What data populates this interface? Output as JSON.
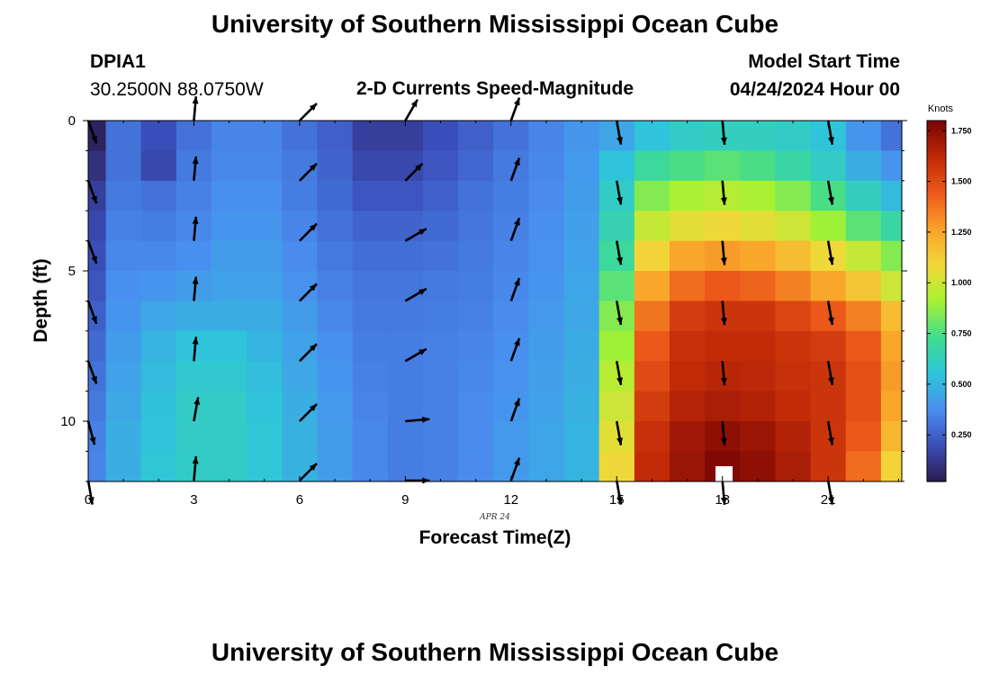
{
  "title": "University of Southern Mississippi Ocean Cube",
  "footer_title": "University of Southern Mississippi Ocean Cube",
  "station": {
    "id": "DPIA1",
    "coords": "30.2500N  88.0750W"
  },
  "subtitle": "2-D Currents Speed-Magnitude",
  "model_start": {
    "label": "Model Start Time",
    "value": "04/24/2024 Hour 00"
  },
  "date_label": "APR 24",
  "colorbar": {
    "unit": "Knots",
    "ticks": [
      "0.250",
      "0.500",
      "0.750",
      "1.000",
      "1.250",
      "1.500",
      "1.750"
    ],
    "range": [
      0.02,
      1.8
    ]
  },
  "chart_data": {
    "type": "heatmap",
    "xlabel": "Forecast Time(Z)",
    "ylabel": "Depth (ft)",
    "xlim": [
      0,
      23
    ],
    "ylim": [
      0,
      12
    ],
    "y_inverted": true,
    "xticks": [
      "0",
      "3",
      "6",
      "9",
      "12",
      "15",
      "18",
      "21"
    ],
    "yticks": [
      "0",
      "5",
      "10"
    ],
    "hours": [
      0,
      1,
      2,
      3,
      4,
      5,
      6,
      7,
      8,
      9,
      10,
      11,
      12,
      13,
      14,
      15,
      16,
      17,
      18,
      19,
      20,
      21,
      22,
      23
    ],
    "depths_ft": [
      0,
      1,
      2,
      3,
      4,
      5,
      6,
      7,
      8,
      9,
      10,
      11
    ],
    "speed_knots": [
      [
        0.05,
        0.3,
        0.2,
        0.3,
        0.35,
        0.35,
        0.3,
        0.25,
        0.15,
        0.15,
        0.2,
        0.25,
        0.3,
        0.35,
        0.4,
        0.45,
        0.55,
        0.6,
        0.62,
        0.62,
        0.6,
        0.55,
        0.4,
        0.3
      ],
      [
        0.1,
        0.3,
        0.18,
        0.32,
        0.36,
        0.36,
        0.32,
        0.26,
        0.18,
        0.18,
        0.22,
        0.27,
        0.32,
        0.36,
        0.41,
        0.55,
        0.7,
        0.75,
        0.78,
        0.75,
        0.68,
        0.6,
        0.48,
        0.4
      ],
      [
        0.15,
        0.32,
        0.3,
        0.34,
        0.38,
        0.38,
        0.33,
        0.28,
        0.22,
        0.22,
        0.25,
        0.3,
        0.33,
        0.37,
        0.42,
        0.6,
        0.85,
        0.92,
        0.95,
        0.92,
        0.85,
        0.75,
        0.62,
        0.52
      ],
      [
        0.18,
        0.34,
        0.33,
        0.36,
        0.4,
        0.4,
        0.35,
        0.3,
        0.26,
        0.26,
        0.28,
        0.31,
        0.34,
        0.38,
        0.43,
        0.65,
        0.98,
        1.05,
        1.08,
        1.05,
        1.0,
        0.9,
        0.78,
        0.68
      ],
      [
        0.2,
        0.36,
        0.36,
        0.38,
        0.42,
        0.42,
        0.37,
        0.32,
        0.29,
        0.29,
        0.3,
        0.32,
        0.35,
        0.39,
        0.44,
        0.7,
        1.1,
        1.25,
        1.28,
        1.25,
        1.18,
        1.08,
        0.98,
        0.85
      ],
      [
        0.22,
        0.38,
        0.4,
        0.42,
        0.44,
        0.44,
        0.39,
        0.34,
        0.31,
        0.31,
        0.32,
        0.33,
        0.36,
        0.4,
        0.45,
        0.78,
        1.25,
        1.4,
        1.45,
        1.42,
        1.35,
        1.25,
        1.15,
        1.0
      ],
      [
        0.25,
        0.4,
        0.45,
        0.48,
        0.48,
        0.47,
        0.42,
        0.36,
        0.32,
        0.32,
        0.33,
        0.34,
        0.37,
        0.41,
        0.46,
        0.85,
        1.38,
        1.55,
        1.58,
        1.58,
        1.52,
        1.45,
        1.35,
        1.18
      ],
      [
        0.28,
        0.42,
        0.5,
        0.55,
        0.55,
        0.5,
        0.44,
        0.38,
        0.33,
        0.33,
        0.34,
        0.35,
        0.38,
        0.42,
        0.47,
        0.9,
        1.45,
        1.6,
        1.62,
        1.62,
        1.58,
        1.55,
        1.45,
        1.25
      ],
      [
        0.3,
        0.44,
        0.52,
        0.58,
        0.58,
        0.53,
        0.46,
        0.4,
        0.34,
        0.33,
        0.34,
        0.36,
        0.39,
        0.43,
        0.48,
        0.95,
        1.5,
        1.62,
        1.64,
        1.63,
        1.6,
        1.58,
        1.48,
        1.28
      ],
      [
        0.32,
        0.46,
        0.54,
        0.6,
        0.6,
        0.55,
        0.48,
        0.41,
        0.35,
        0.33,
        0.34,
        0.37,
        0.4,
        0.44,
        0.49,
        1.0,
        1.55,
        1.65,
        1.68,
        1.66,
        1.62,
        1.58,
        1.48,
        1.25
      ],
      [
        0.34,
        0.48,
        0.55,
        0.6,
        0.6,
        0.56,
        0.49,
        0.42,
        0.36,
        0.33,
        0.34,
        0.37,
        0.41,
        0.45,
        0.5,
        1.05,
        1.6,
        1.7,
        1.75,
        1.72,
        1.66,
        1.58,
        1.45,
        1.2
      ],
      [
        0.35,
        0.48,
        0.56,
        0.6,
        0.6,
        0.56,
        0.49,
        0.42,
        0.36,
        0.33,
        0.34,
        0.37,
        0.41,
        0.45,
        0.5,
        1.08,
        1.62,
        1.72,
        1.78,
        1.75,
        1.68,
        1.58,
        1.4,
        1.1
      ]
    ],
    "vector_hours": [
      0,
      3,
      6,
      9,
      12,
      15,
      18,
      21
    ],
    "vector_depths_ft": [
      0,
      2,
      4,
      6,
      8,
      10,
      12
    ],
    "vector_direction_deg": [
      [
        160,
        5,
        45,
        30,
        20,
        170,
        175,
        170
      ],
      [
        160,
        5,
        45,
        45,
        20,
        170,
        175,
        170
      ],
      [
        160,
        5,
        45,
        60,
        20,
        170,
        175,
        170
      ],
      [
        160,
        5,
        45,
        60,
        20,
        170,
        175,
        170
      ],
      [
        160,
        5,
        45,
        60,
        20,
        170,
        175,
        170
      ],
      [
        165,
        10,
        45,
        85,
        20,
        170,
        175,
        170
      ],
      [
        170,
        5,
        45,
        90,
        20,
        170,
        175,
        170
      ]
    ]
  },
  "palette": [
    "#2b1a4c",
    "#3a4db8",
    "#4a8ef0",
    "#2ec5d9",
    "#3fdc8f",
    "#a5f232",
    "#f2d83a",
    "#f9a22a",
    "#ed5a1a",
    "#c02a08",
    "#7a0403"
  ]
}
